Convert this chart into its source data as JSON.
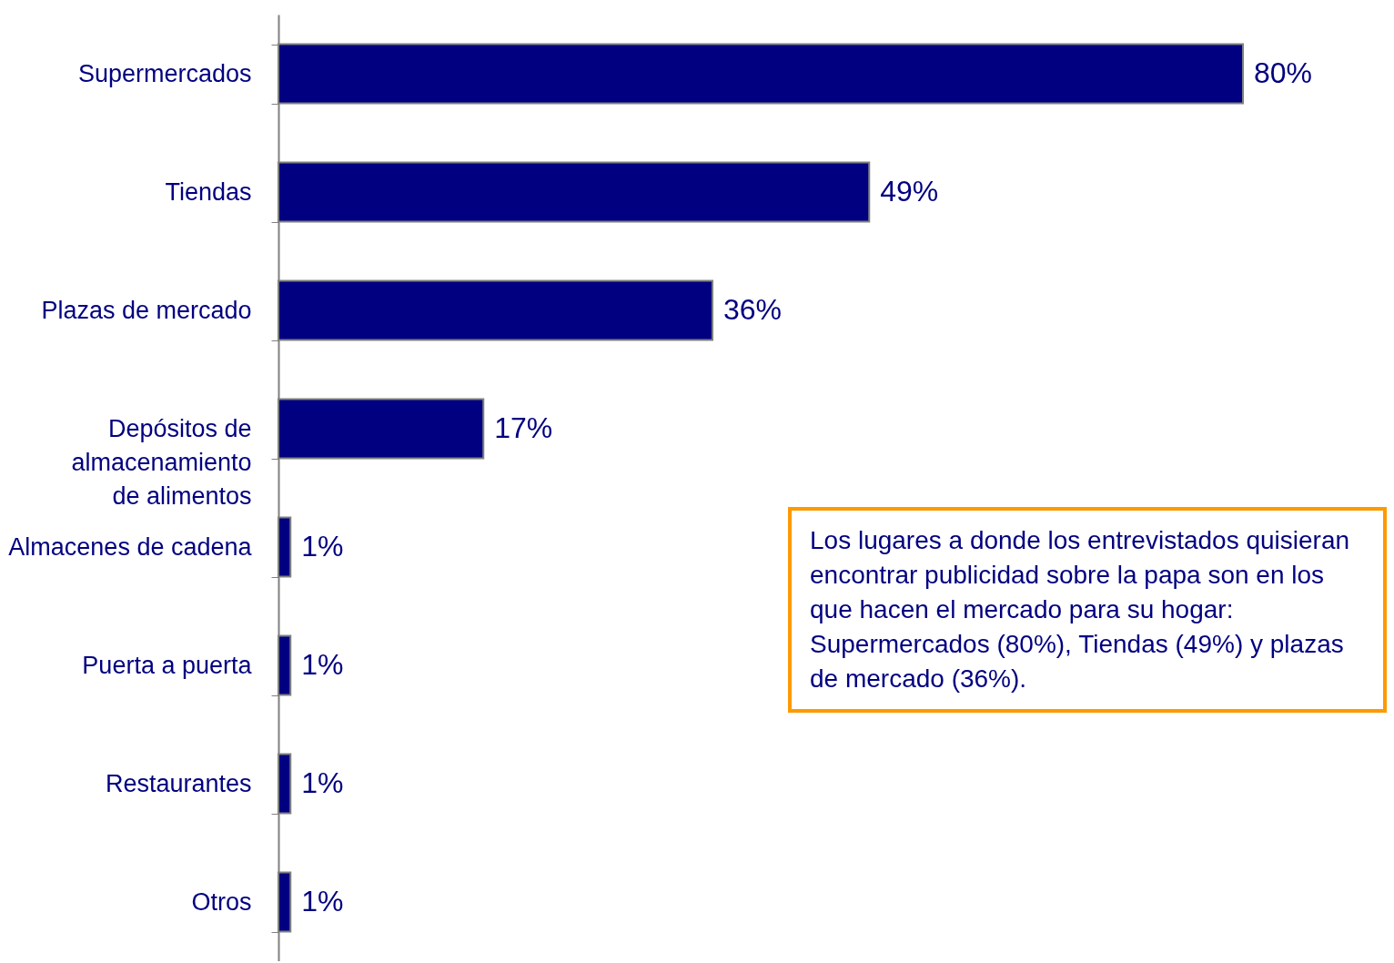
{
  "chart_data": {
    "type": "bar",
    "orientation": "horizontal",
    "categories": [
      "Supermercados",
      "Tiendas",
      "Plazas de mercado",
      "Depósitos de almacenamiento de alimentos",
      "Almacenes de cadena",
      "Puerta a puerta",
      "Restaurantes",
      "Otros"
    ],
    "values": [
      80,
      49,
      36,
      17,
      1,
      1,
      1,
      1
    ],
    "value_labels": [
      "80%",
      "49%",
      "36%",
      "17%",
      "1%",
      "1%",
      "1%",
      "1%"
    ],
    "color": "#000080",
    "annotations": [
      "Los lugares a donde los entrevistados quisieran encontrar publicidad sobre la papa son en los que hacen el mercado para su hogar: Supermercados (80%), Tiendas (49%) y plazas de mercado (36%)."
    ],
    "grid": false
  }
}
